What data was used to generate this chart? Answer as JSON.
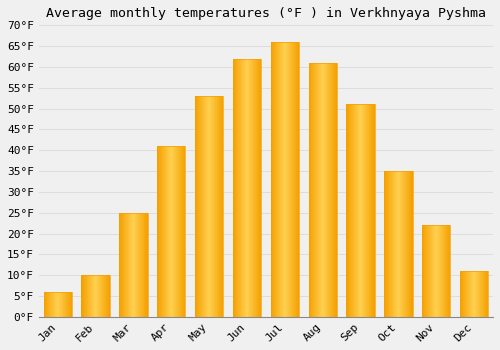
{
  "title": "Average monthly temperatures (°F ) in Verkhnyaya Pyshma",
  "months": [
    "Jan",
    "Feb",
    "Mar",
    "Apr",
    "May",
    "Jun",
    "Jul",
    "Aug",
    "Sep",
    "Oct",
    "Nov",
    "Dec"
  ],
  "values": [
    6,
    10,
    25,
    41,
    53,
    62,
    66,
    61,
    51,
    35,
    22,
    11
  ],
  "bar_color_center": "#FFD050",
  "bar_color_edge": "#F5A000",
  "background_color": "#F0F0F0",
  "grid_color": "#DDDDDD",
  "ylim": [
    0,
    70
  ],
  "yticks": [
    0,
    5,
    10,
    15,
    20,
    25,
    30,
    35,
    40,
    45,
    50,
    55,
    60,
    65,
    70
  ],
  "title_fontsize": 9.5,
  "tick_fontsize": 8,
  "font_family": "monospace",
  "bar_width": 0.75
}
